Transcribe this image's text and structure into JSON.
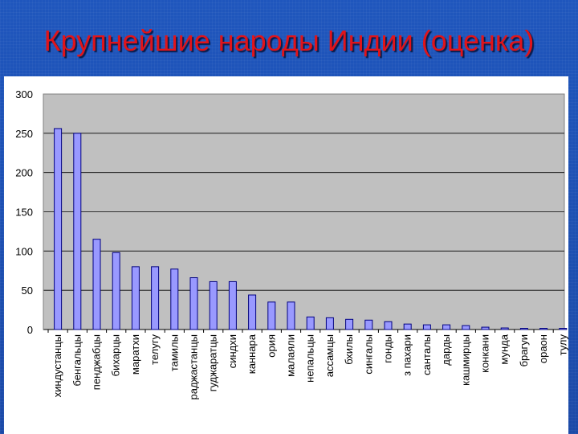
{
  "slide": {
    "title": "Крупнейшие народы Индии (оценка)"
  },
  "colors": {
    "background": "#1c4fb0",
    "title": "#e0141a",
    "plot_area": "#c0c0c0",
    "bar": "#9999ff",
    "bar_stroke": "#000080"
  },
  "chart_data": {
    "type": "bar",
    "title": "",
    "xlabel": "",
    "ylabel": "",
    "ylim": [
      0,
      300
    ],
    "yticks": [
      0,
      50,
      100,
      150,
      200,
      250,
      300
    ],
    "grid": true,
    "legend": "none",
    "categories": [
      "хиндустанцы",
      "бенгальцы",
      "пенджабцы",
      "бихарцы",
      "маратхи",
      "телугу",
      "тамилы",
      "раджастанцы",
      "гуджаратцы",
      "синдхи",
      "каннара",
      "ория",
      "малаяли",
      "непальцы",
      "ассамцы",
      "бхилы",
      "сингалы",
      "гонды",
      "з пахари",
      "санталы",
      "дарды",
      "кашмирцы",
      "конкани",
      "мунда",
      "брагуи",
      "орaон",
      "тулу"
    ],
    "series": [
      {
        "values": [
          256,
          250,
          115,
          98,
          80,
          80,
          77,
          66,
          61,
          61,
          44,
          35,
          35,
          16,
          15,
          13,
          12,
          10,
          7,
          6,
          6,
          5,
          3,
          2,
          1.5,
          1.5,
          1.5
        ]
      }
    ]
  }
}
